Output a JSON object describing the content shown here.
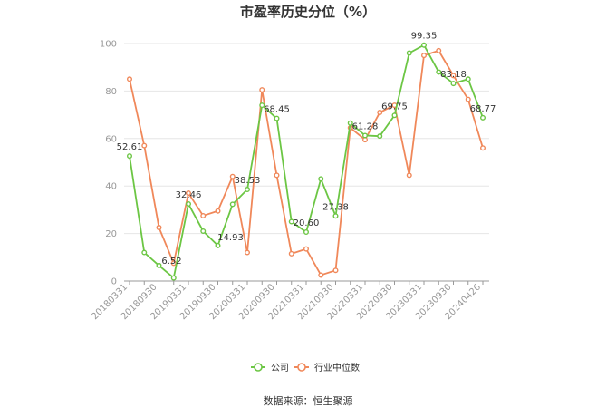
{
  "chart_data": {
    "type": "line",
    "title": "市盈率历史分位（%）",
    "x": [
      "20180331",
      "20180630",
      "20180930",
      "20181231",
      "20190331",
      "20190630",
      "20190930",
      "20191231",
      "20200331",
      "20200630",
      "20200930",
      "20201231",
      "20210331",
      "20210630",
      "20210930",
      "20211231",
      "20220331",
      "20220630",
      "20220930",
      "20221231",
      "20230331",
      "20230630",
      "20230930",
      "20231231",
      "20240426"
    ],
    "x_tick_labels": [
      "20180331",
      "",
      "20180930",
      "",
      "20190331",
      "",
      "20190930",
      "",
      "20200331",
      "",
      "20200930",
      "",
      "20210331",
      "",
      "20210930",
      "",
      "20220331",
      "",
      "20220930",
      "",
      "20230331",
      "",
      "20230930",
      "",
      "20240426"
    ],
    "ylim": [
      0,
      100
    ],
    "yticks": [
      0,
      20,
      40,
      60,
      80,
      100
    ],
    "grid": true,
    "legend_position": "bottom",
    "series": [
      {
        "name": "公司",
        "color": "#6cc644",
        "values": [
          52.61,
          12.0,
          6.52,
          1.3,
          32.46,
          21.0,
          14.93,
          32.3,
          38.53,
          74.0,
          68.45,
          25.0,
          20.6,
          43.0,
          27.38,
          66.5,
          61.28,
          61.0,
          69.75,
          96.0,
          99.35,
          88.0,
          83.18,
          85.0,
          68.77
        ],
        "labels": [
          "52.61",
          "",
          "6.52",
          "",
          "32.46",
          "",
          "14.93",
          "",
          "38.53",
          "",
          "68.45",
          "",
          "20.60",
          "",
          "27.38",
          "",
          "61.28",
          "",
          "69.75",
          "",
          "99.35",
          "",
          "83.18",
          "",
          "68.77"
        ]
      },
      {
        "name": "行业中位数",
        "color": "#f0885a",
        "values": [
          85.0,
          57.0,
          22.5,
          7.5,
          37.0,
          27.5,
          29.5,
          44.0,
          12.0,
          80.5,
          44.5,
          11.5,
          13.5,
          2.5,
          4.5,
          64.5,
          59.5,
          71.0,
          74.0,
          44.5,
          95.0,
          97.0,
          86.5,
          76.5,
          56.0
        ]
      }
    ]
  },
  "source": "数据来源：恒生聚源"
}
